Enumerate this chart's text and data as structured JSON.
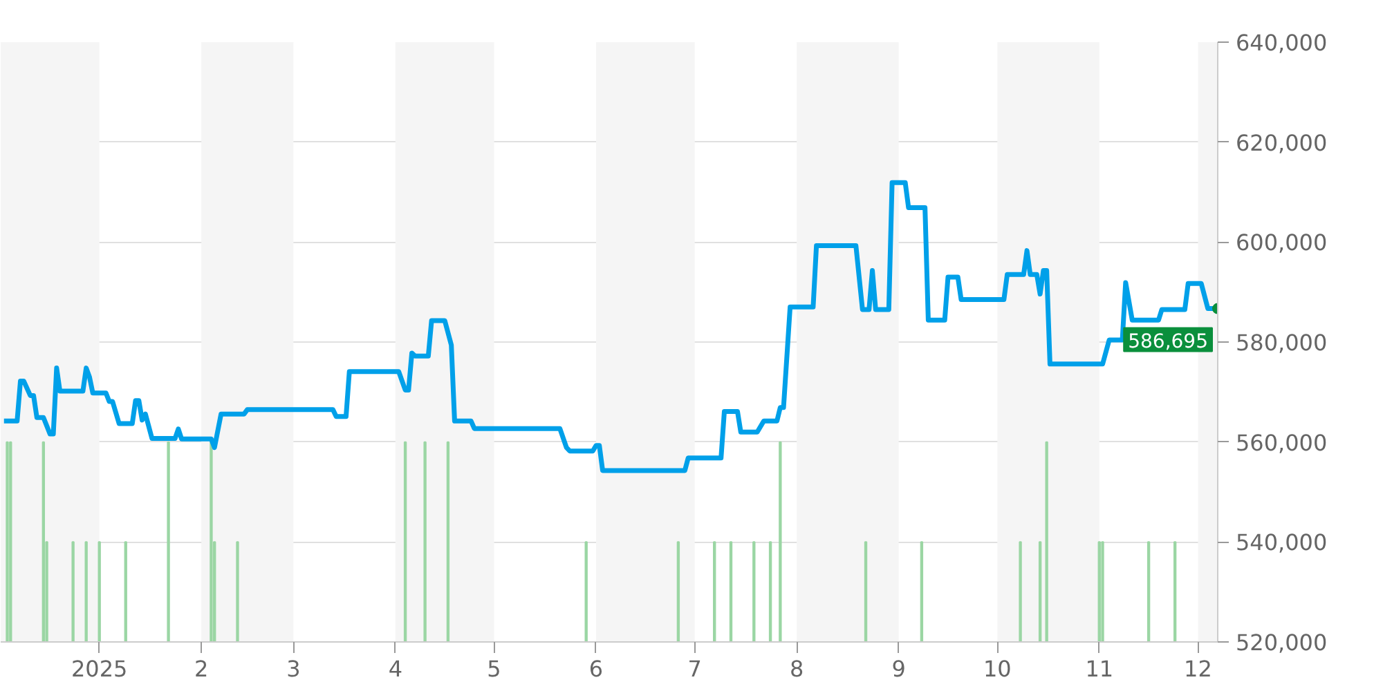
{
  "chart_data": {
    "type": "line",
    "xlim": [
      "2024-12-02",
      "2025-12-07"
    ],
    "ylim": [
      520000,
      640000
    ],
    "xticks": [
      {
        "value": "2025-01-01",
        "label": "2025"
      },
      {
        "value": "2025-02-01",
        "label": "2"
      },
      {
        "value": "2025-03-01",
        "label": "3"
      },
      {
        "value": "2025-04-01",
        "label": "4"
      },
      {
        "value": "2025-05-01",
        "label": "5"
      },
      {
        "value": "2025-06-01",
        "label": "6"
      },
      {
        "value": "2025-07-01",
        "label": "7"
      },
      {
        "value": "2025-08-01",
        "label": "8"
      },
      {
        "value": "2025-09-01",
        "label": "9"
      },
      {
        "value": "2025-10-01",
        "label": "10"
      },
      {
        "value": "2025-11-01",
        "label": "11"
      },
      {
        "value": "2025-12-01",
        "label": "12"
      }
    ],
    "yticks": [
      {
        "value": 520000,
        "label": "520,000"
      },
      {
        "value": 540000,
        "label": "540,000"
      },
      {
        "value": 560000,
        "label": "560,000"
      },
      {
        "value": 580000,
        "label": "580,000"
      },
      {
        "value": 600000,
        "label": "600,000"
      },
      {
        "value": 620000,
        "label": "620,000"
      },
      {
        "value": 640000,
        "label": "640,000"
      }
    ],
    "grid": "y",
    "bands": [
      {
        "axis": "x",
        "from": "2024-12-02",
        "to": "2025-01-01",
        "color": "#f5f5f5"
      },
      {
        "axis": "x",
        "from": "2025-02-01",
        "to": "2025-03-01",
        "color": "#f5f5f5"
      },
      {
        "axis": "x",
        "from": "2025-04-01",
        "to": "2025-05-01",
        "color": "#f5f5f5"
      },
      {
        "axis": "x",
        "from": "2025-06-01",
        "to": "2025-07-01",
        "color": "#f5f5f5"
      },
      {
        "axis": "x",
        "from": "2025-08-01",
        "to": "2025-09-01",
        "color": "#f5f5f5"
      },
      {
        "axis": "x",
        "from": "2025-10-01",
        "to": "2025-11-01",
        "color": "#f5f5f5"
      },
      {
        "axis": "x",
        "from": "2025-12-01",
        "to": "2025-12-07",
        "color": "#f5f5f5"
      }
    ],
    "series": [
      {
        "type": "bar",
        "color": "#9bd6a4",
        "x": [
          "2024-12-04",
          "2024-12-05",
          "2024-12-15",
          "2024-12-16",
          "2024-12-24",
          "2024-12-28",
          "2025-01-01",
          "2025-01-09",
          "2025-01-22",
          "2025-02-04",
          "2025-02-05",
          "2025-02-12",
          "2025-04-04",
          "2025-04-10",
          "2025-04-17",
          "2025-05-29",
          "2025-06-26",
          "2025-07-07",
          "2025-07-12",
          "2025-07-19",
          "2025-07-24",
          "2025-07-27",
          "2025-08-22",
          "2025-09-08",
          "2025-10-08",
          "2025-10-14",
          "2025-10-16",
          "2025-11-01",
          "2025-11-02",
          "2025-11-16",
          "2025-11-24"
        ],
        "values": [
          560000,
          560000,
          560000,
          540000,
          540000,
          540000,
          540000,
          540000,
          560000,
          560000,
          540000,
          540000,
          560000,
          560000,
          560000,
          540000,
          540000,
          540000,
          540000,
          540000,
          540000,
          560000,
          540000,
          540000,
          540000,
          540000,
          560000,
          540000,
          540000,
          540000,
          540000
        ]
      },
      {
        "color": "#00a0e9",
        "x": [
          "2024-12-03",
          "2024-12-07",
          "2024-12-08",
          "2024-12-09",
          "2024-12-11",
          "2024-12-12",
          "2024-12-13",
          "2024-12-15",
          "2024-12-17",
          "2024-12-18",
          "2024-12-19",
          "2024-12-20",
          "2024-12-27",
          "2024-12-28",
          "2024-12-29",
          "2024-12-30",
          "2025-01-03",
          "2025-01-04",
          "2025-01-05",
          "2025-01-07",
          "2025-01-11",
          "2025-01-12",
          "2025-01-13",
          "2025-01-14",
          "2025-01-15",
          "2025-01-17",
          "2025-01-24",
          "2025-01-25",
          "2025-01-26",
          "2025-02-04",
          "2025-02-05",
          "2025-02-07",
          "2025-02-14",
          "2025-02-15",
          "2025-03-13",
          "2025-03-14",
          "2025-03-17",
          "2025-03-18",
          "2025-04-02",
          "2025-04-04",
          "2025-04-05",
          "2025-04-06",
          "2025-04-07",
          "2025-04-11",
          "2025-04-12",
          "2025-04-16",
          "2025-04-18",
          "2025-04-19",
          "2025-04-24",
          "2025-04-25",
          "2025-05-21",
          "2025-05-23",
          "2025-05-24",
          "2025-05-31",
          "2025-06-01",
          "2025-06-02",
          "2025-06-03",
          "2025-06-28",
          "2025-06-29",
          "2025-07-09",
          "2025-07-10",
          "2025-07-14",
          "2025-07-15",
          "2025-07-20",
          "2025-07-22",
          "2025-07-26",
          "2025-07-27",
          "2025-07-28",
          "2025-07-30",
          "2025-08-06",
          "2025-08-07",
          "2025-08-19",
          "2025-08-21",
          "2025-08-23",
          "2025-08-24",
          "2025-08-25",
          "2025-08-29",
          "2025-08-30",
          "2025-09-03",
          "2025-09-04",
          "2025-09-09",
          "2025-09-10",
          "2025-09-15",
          "2025-09-16",
          "2025-09-19",
          "2025-09-20",
          "2025-10-03",
          "2025-10-04",
          "2025-10-09",
          "2025-10-10",
          "2025-10-11",
          "2025-10-13",
          "2025-10-14",
          "2025-10-15",
          "2025-10-16",
          "2025-10-17",
          "2025-11-02",
          "2025-11-04",
          "2025-11-08",
          "2025-11-09",
          "2025-11-11",
          "2025-11-19",
          "2025-11-20",
          "2025-11-27",
          "2025-11-28",
          "2025-12-02",
          "2025-12-04",
          "2025-12-07"
        ],
        "values": [
          564200,
          564200,
          572200,
          572200,
          569300,
          569300,
          564900,
          564900,
          561600,
          561600,
          574800,
          570200,
          570200,
          574800,
          573000,
          569800,
          569800,
          568100,
          568100,
          563700,
          563700,
          568300,
          568300,
          564400,
          565600,
          560700,
          560700,
          562600,
          560600,
          560600,
          558900,
          565600,
          565600,
          566500,
          566500,
          565100,
          565100,
          574100,
          574100,
          570400,
          570400,
          577800,
          577200,
          577200,
          584300,
          584300,
          579400,
          564200,
          564200,
          562700,
          562700,
          558900,
          558200,
          558200,
          559300,
          559300,
          554300,
          554300,
          556800,
          556800,
          566100,
          566100,
          562000,
          562000,
          564200,
          564200,
          566900,
          566900,
          587000,
          587000,
          599300,
          599300,
          586500,
          586500,
          594300,
          586500,
          586500,
          611900,
          611900,
          606900,
          606900,
          584400,
          584400,
          593000,
          593000,
          588500,
          588500,
          593500,
          593500,
          598300,
          593500,
          593500,
          589600,
          594300,
          594300,
          575600,
          575600,
          580400,
          580400,
          591900,
          584400,
          584400,
          586500,
          586500,
          591700,
          591700,
          586695,
          586695
        ]
      }
    ],
    "annotations": [
      {
        "text": "586,695",
        "x": "2025-12-07",
        "y": 586695
      }
    ]
  }
}
